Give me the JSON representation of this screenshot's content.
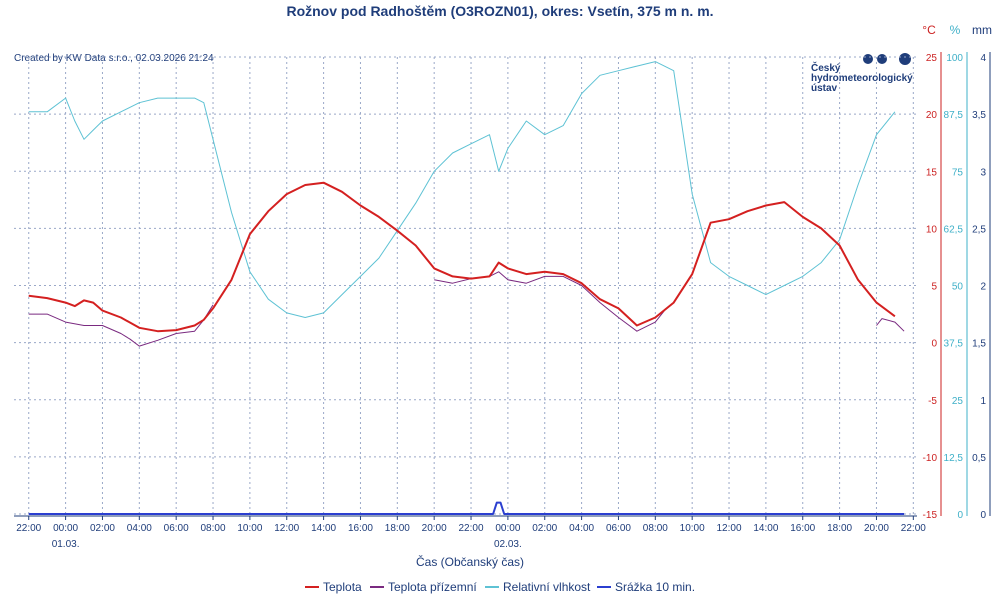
{
  "chart_data": {
    "type": "line",
    "title": "Rožnov pod Radhoštěm (O3ROZN01), okres: Vsetín, 375 m n. m.",
    "credit": "Created by KW Data s.r.o., 02.03.2026 21:24",
    "logo_lines": [
      "Český",
      "hydrometeorologický",
      "ústav"
    ],
    "xlabel": "Čas (Občanský čas)",
    "x_range_hours": [
      -2.8,
      46.2
    ],
    "x_tick_hours": [
      -2,
      0,
      2,
      4,
      6,
      8,
      10,
      12,
      14,
      16,
      18,
      20,
      22,
      24,
      26,
      28,
      30,
      32,
      34,
      36,
      38,
      40,
      42,
      44,
      46
    ],
    "x_tick_labels": [
      "22:00",
      "00:00",
      "02:00",
      "04:00",
      "06:00",
      "08:00",
      "10:00",
      "12:00",
      "14:00",
      "16:00",
      "18:00",
      "20:00",
      "22:00",
      "00:00",
      "02:00",
      "04:00",
      "06:00",
      "08:00",
      "10:00",
      "12:00",
      "14:00",
      "16:00",
      "18:00",
      "20:00",
      "22:00"
    ],
    "date_labels": [
      {
        "hour": 0,
        "text": "01.03."
      },
      {
        "hour": 24,
        "text": "02.03."
      }
    ],
    "axes": {
      "temperature": {
        "unit": "°C",
        "ylim": [
          -15,
          25
        ],
        "ticks": [
          25,
          20,
          15,
          10,
          5,
          0,
          -5,
          -10,
          -15
        ],
        "tick_labels": [
          "25",
          "20",
          "15",
          "10",
          "5",
          "0",
          "-5",
          "-10",
          "-15"
        ],
        "color": "#cc2222"
      },
      "humidity": {
        "unit": "%",
        "ylim": [
          0,
          100
        ],
        "ticks": [
          100,
          87.5,
          75,
          62.5,
          50,
          37.5,
          25,
          12.5,
          0
        ],
        "tick_labels": [
          "100",
          "87,5",
          "75",
          "62,5",
          "50",
          "37,5",
          "25",
          "12,5",
          "0"
        ],
        "color": "#3fb0c8"
      },
      "precipitation": {
        "unit": "mm",
        "ylim": [
          0,
          4
        ],
        "ticks": [
          4,
          3.5,
          3,
          2.5,
          2,
          1.5,
          1,
          0.5,
          0
        ],
        "tick_labels": [
          "4",
          "3,5",
          "3",
          "2,5",
          "2",
          "1,5",
          "1",
          "0,5",
          "0"
        ],
        "color": "#1f3d7a"
      }
    },
    "series": [
      {
        "name": "Teplota",
        "axis": "temperature",
        "color": "#d42020",
        "width": 2,
        "x": [
          -2.0,
          -1.0,
          0.0,
          0.5,
          1.0,
          1.5,
          2.0,
          3.0,
          4.0,
          5.0,
          6.0,
          7.0,
          7.5,
          8.0,
          9.0,
          10.0,
          11.0,
          12.0,
          13.0,
          14.0,
          15.0,
          16.0,
          17.0,
          18.0,
          19.0,
          20.0,
          21.0,
          22.0,
          23.0,
          23.5,
          24.0,
          25.0,
          26.0,
          27.0,
          28.0,
          29.0,
          30.0,
          31.0,
          32.0,
          33.0,
          34.0,
          35.0,
          36.0,
          37.0,
          38.0,
          39.0,
          40.0,
          41.0,
          42.0,
          43.0,
          44.0,
          45.0
        ],
        "values": [
          4.1,
          3.9,
          3.5,
          3.2,
          3.7,
          3.5,
          2.8,
          2.2,
          1.3,
          1.0,
          1.1,
          1.5,
          2.0,
          3.0,
          5.5,
          9.5,
          11.5,
          13.0,
          13.8,
          14.0,
          13.2,
          12.0,
          11.0,
          9.8,
          8.5,
          6.5,
          5.8,
          5.6,
          5.8,
          7.0,
          6.5,
          6.0,
          6.2,
          6.0,
          5.2,
          3.8,
          3.0,
          1.5,
          2.2,
          3.5,
          6.0,
          10.5,
          10.8,
          11.5,
          12.0,
          12.3,
          11.0,
          10.0,
          8.5,
          5.5,
          3.5,
          2.3
        ]
      },
      {
        "name": "Teplota přízemní",
        "axis": "temperature",
        "color": "#7a2a80",
        "width": 1,
        "segments": [
          {
            "x": [
              -2.0,
              -1.0,
              0.0,
              1.0,
              2.0,
              3.0,
              3.5,
              4.0,
              5.0,
              6.0,
              7.0,
              7.5,
              8.0
            ],
            "values": [
              2.5,
              2.5,
              1.8,
              1.5,
              1.5,
              0.8,
              0.3,
              -0.3,
              0.2,
              0.8,
              1.0,
              2.0,
              3.3
            ]
          },
          {
            "x": [
              20.0,
              21.0,
              22.0,
              23.0,
              23.5,
              24.0,
              25.0,
              26.0,
              27.0,
              28.0,
              29.0,
              30.0,
              31.0,
              32.0,
              32.5
            ],
            "values": [
              5.5,
              5.2,
              5.6,
              5.8,
              6.2,
              5.5,
              5.2,
              5.8,
              5.8,
              5.0,
              3.5,
              2.2,
              1.0,
              1.8,
              2.8
            ]
          },
          {
            "x": [
              44.0,
              44.3,
              45.0,
              45.5
            ],
            "values": [
              1.5,
              2.1,
              1.8,
              1.0
            ]
          }
        ]
      },
      {
        "name": "Relativní vlhkost",
        "axis": "humidity",
        "color": "#5ec2d4",
        "width": 1,
        "x": [
          -2.0,
          -1.0,
          0.0,
          0.5,
          1.0,
          1.5,
          2.0,
          3.0,
          4.0,
          5.0,
          6.0,
          7.0,
          7.5,
          8.0,
          9.0,
          10.0,
          11.0,
          12.0,
          13.0,
          14.0,
          15.0,
          16.0,
          17.0,
          18.0,
          19.0,
          20.0,
          21.0,
          22.0,
          23.0,
          23.5,
          24.0,
          25.0,
          26.0,
          27.0,
          28.0,
          29.0,
          30.0,
          31.0,
          32.0,
          33.0,
          34.0,
          35.0,
          36.0,
          37.0,
          38.0,
          39.0,
          40.0,
          41.0,
          42.0,
          43.0,
          44.0,
          45.0
        ],
        "values": [
          88,
          88,
          91,
          86,
          82,
          84,
          86,
          88,
          90,
          91,
          91,
          91,
          90,
          82,
          66,
          53,
          47,
          44,
          43,
          44,
          48,
          52,
          56,
          62,
          68,
          75,
          79,
          81,
          83,
          75,
          80,
          86,
          83,
          85,
          92,
          96,
          97,
          98,
          99,
          97,
          70,
          55,
          52,
          50,
          48,
          50,
          52,
          55,
          60,
          72,
          83,
          88
        ]
      },
      {
        "name": "Srážka 10 min.",
        "axis": "precipitation",
        "color": "#2b3fd0",
        "width": 2,
        "x": [
          -2.0,
          23.0,
          23.2,
          23.4,
          23.6,
          23.8,
          45.5
        ],
        "values": [
          0.0,
          0.0,
          0.0,
          0.1,
          0.1,
          0.0,
          0.0
        ]
      }
    ],
    "legend": [
      "Teplota",
      "Teplota přízemní",
      "Relativní vlhkost",
      "Srážka 10 min."
    ],
    "legend_position": "bottom-center",
    "grid": true
  }
}
